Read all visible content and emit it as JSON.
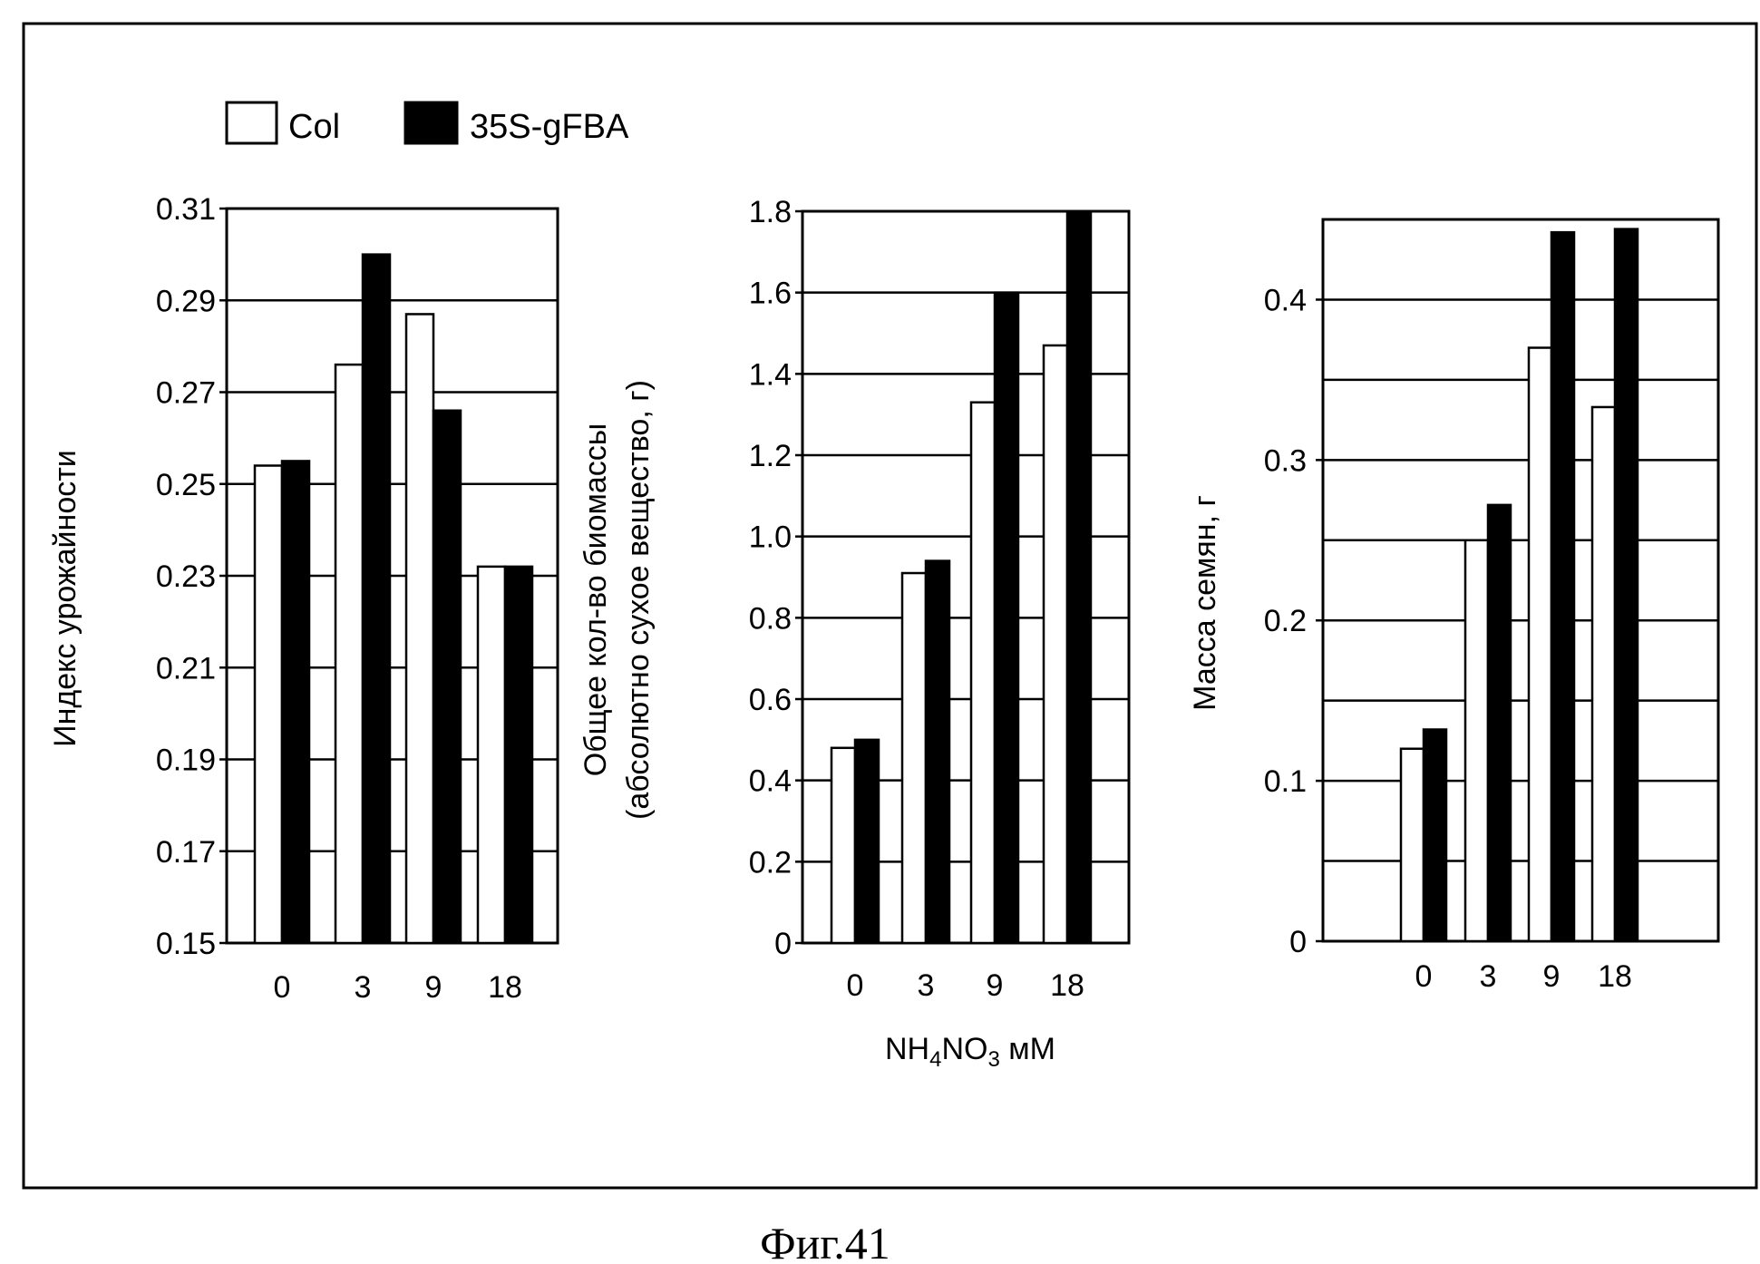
{
  "legend": {
    "col_label": "Col",
    "transgenic_label": "35S-gFBA"
  },
  "x_title": {
    "prefix": "NH",
    "sub1": "4",
    "mid": "NO",
    "sub2": "3",
    "suffix": " мМ"
  },
  "caption": "Фиг.41",
  "colors": {
    "col": "#ffffff",
    "transgenic": "#000000",
    "frame": "#000000"
  },
  "chart_data": [
    {
      "type": "bar",
      "ylabel": "Индекс урожайности",
      "ylabel2": "",
      "categories": [
        "0",
        "3",
        "9",
        "18"
      ],
      "ylim": [
        0.15,
        0.31
      ],
      "yticks": [
        0.15,
        0.17,
        0.19,
        0.21,
        0.23,
        0.25,
        0.27,
        0.29,
        0.31
      ],
      "ytick_labels": [
        "0.15",
        "0.17",
        "0.19",
        "0.21",
        "0.23",
        "0.25",
        "0.27",
        "0.29",
        "0.31"
      ],
      "grid": true,
      "series": [
        {
          "name": "Col",
          "values": [
            0.254,
            0.276,
            0.287,
            0.232
          ]
        },
        {
          "name": "35S-gFBA",
          "values": [
            0.255,
            0.3,
            0.266,
            0.232
          ]
        }
      ]
    },
    {
      "type": "bar",
      "ylabel": "Общее кол-во биомассы",
      "ylabel2": "(абсолютно сухое вещество, г)",
      "categories": [
        "0",
        "3",
        "9",
        "18"
      ],
      "ylim": [
        0,
        1.8
      ],
      "yticks": [
        0,
        0.2,
        0.4,
        0.6,
        0.8,
        1.0,
        1.2,
        1.4,
        1.6,
        1.8
      ],
      "ytick_labels": [
        "0",
        "0.2",
        "0.4",
        "0.6",
        "0.8",
        "1.0",
        "1.2",
        "1.4",
        "1.6",
        "1.8"
      ],
      "grid": true,
      "series": [
        {
          "name": "Col",
          "values": [
            0.48,
            0.91,
            1.33,
            1.47
          ]
        },
        {
          "name": "35S-gFBA",
          "values": [
            0.5,
            0.94,
            1.6,
            1.8
          ]
        }
      ]
    },
    {
      "type": "bar",
      "ylabel": "Масса семян, г",
      "ylabel2": "",
      "categories": [
        "0",
        "3",
        "9",
        "18"
      ],
      "ylim": [
        0,
        0.45
      ],
      "yticks": [
        0,
        0.1,
        0.2,
        0.3,
        0.4
      ],
      "ytick_labels": [
        "0",
        "0.1",
        "0.2",
        "0.3",
        "0.4"
      ],
      "gridlines": [
        0.05,
        0.1,
        0.15,
        0.2,
        0.25,
        0.3,
        0.35,
        0.4
      ],
      "grid": true,
      "series": [
        {
          "name": "Col",
          "values": [
            0.12,
            0.25,
            0.37,
            0.333
          ]
        },
        {
          "name": "35S-gFBA",
          "values": [
            0.132,
            0.272,
            0.442,
            0.444
          ]
        }
      ]
    }
  ]
}
